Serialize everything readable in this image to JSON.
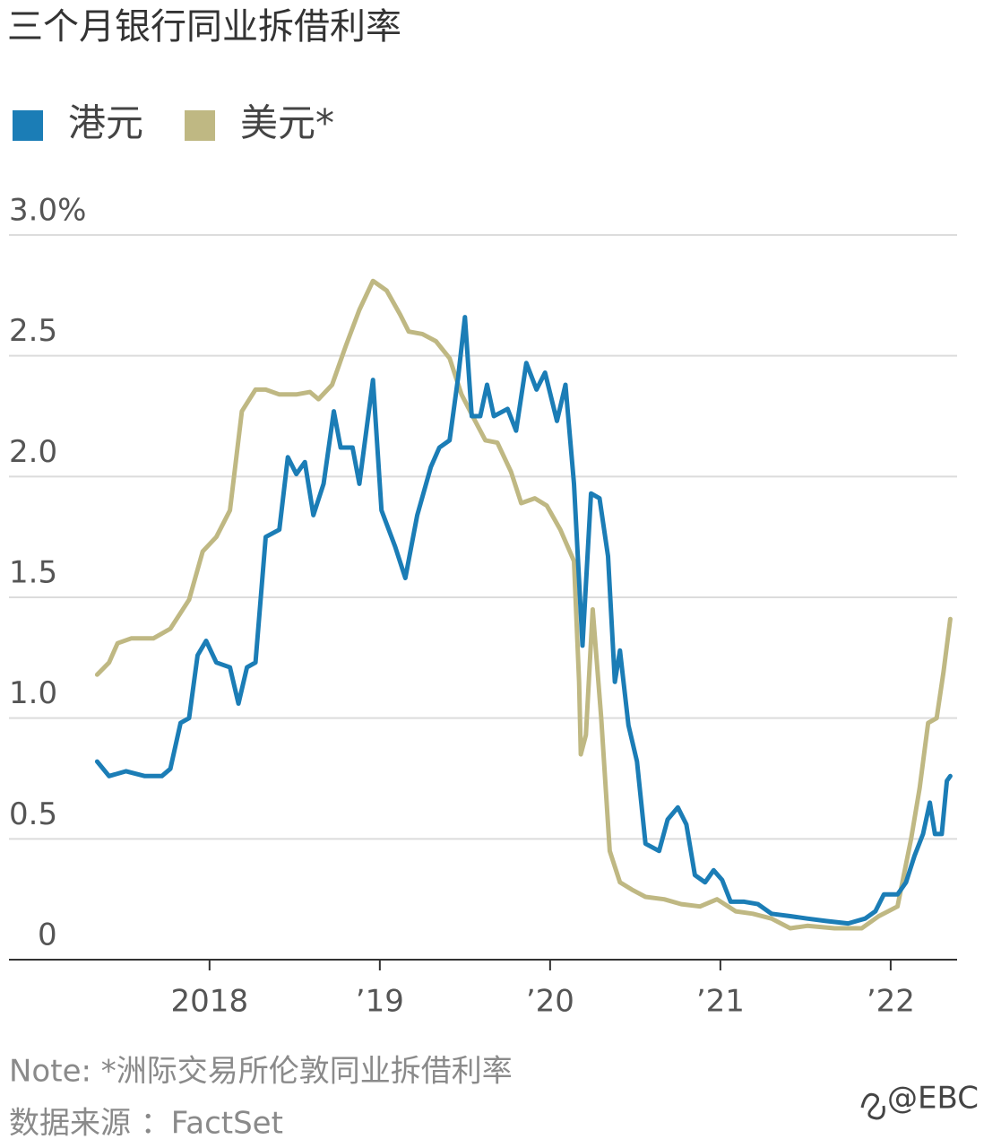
{
  "chart_data": {
    "type": "line",
    "title": "三个月银行同业拆借利率",
    "note": "Note: *洲际交易所伦敦同业拆借利率",
    "source": "数据来源 ：FactSet",
    "watermark": "@EBC",
    "xlim": [
      2016.98,
      2022.39
    ],
    "xticks": [
      2018,
      {
        "value": 2019,
        "label": "’19"
      },
      {
        "value": 2020,
        "label": "’20"
      },
      {
        "value": 2021,
        "label": "’21"
      },
      {
        "value": 2022,
        "label": "’22"
      }
    ],
    "ylim": [
      0,
      3
    ],
    "yticks": [
      0,
      0.5,
      {
        "value": 1,
        "label": "1.0"
      },
      1.5,
      {
        "value": 2,
        "label": "2.0"
      },
      2.5,
      {
        "value": 3,
        "label": "3.0%"
      }
    ],
    "grid": true,
    "series": [
      {
        "name": "港元",
        "color": "#1b7db6",
        "x": [
          2017.34,
          2017.41,
          2017.51,
          2017.62,
          2017.72,
          2017.77,
          2017.83,
          2017.88,
          2017.93,
          2017.98,
          2018.04,
          2018.12,
          2018.17,
          2018.22,
          2018.27,
          2018.33,
          2018.41,
          2018.46,
          2018.51,
          2018.56,
          2018.61,
          2018.67,
          2018.73,
          2018.77,
          2018.84,
          2018.88,
          2018.96,
          2019.01,
          2019.09,
          2019.15,
          2019.22,
          2019.3,
          2019.35,
          2019.41,
          2019.46,
          2019.5,
          2019.54,
          2019.59,
          2019.63,
          2019.67,
          2019.75,
          2019.8,
          2019.86,
          2019.92,
          2019.97,
          2020.04,
          2020.09,
          2020.14,
          2020.19,
          2020.24,
          2020.29,
          2020.34,
          2020.38,
          2020.41,
          2020.46,
          2020.51,
          2020.56,
          2020.64,
          2020.69,
          2020.75,
          2020.8,
          2020.85,
          2020.91,
          2020.96,
          2021.01,
          2021.06,
          2021.14,
          2021.22,
          2021.3,
          2021.41,
          2021.51,
          2021.62,
          2021.75,
          2021.85,
          2021.91,
          2021.96,
          2022.04,
          2022.09,
          2022.14,
          2022.19,
          2022.23,
          2022.26,
          2022.3,
          2022.33,
          2022.35
        ],
        "values": [
          0.82,
          0.76,
          0.78,
          0.76,
          0.76,
          0.79,
          0.98,
          1.0,
          1.26,
          1.32,
          1.23,
          1.21,
          1.06,
          1.21,
          1.23,
          1.75,
          1.78,
          2.08,
          2.01,
          2.06,
          1.84,
          1.97,
          2.27,
          2.12,
          2.12,
          1.97,
          2.4,
          1.86,
          1.71,
          1.58,
          1.84,
          2.04,
          2.12,
          2.15,
          2.41,
          2.66,
          2.25,
          2.25,
          2.38,
          2.25,
          2.28,
          2.19,
          2.47,
          2.36,
          2.43,
          2.23,
          2.38,
          1.97,
          1.3,
          1.93,
          1.91,
          1.67,
          1.15,
          1.28,
          0.97,
          0.82,
          0.48,
          0.45,
          0.58,
          0.63,
          0.56,
          0.35,
          0.32,
          0.37,
          0.33,
          0.24,
          0.24,
          0.23,
          0.19,
          0.18,
          0.17,
          0.16,
          0.15,
          0.17,
          0.2,
          0.27,
          0.27,
          0.32,
          0.43,
          0.52,
          0.65,
          0.52,
          0.52,
          0.74,
          0.76
        ]
      },
      {
        "name": "美元*",
        "color": "#bfb883",
        "x": [
          2017.34,
          2017.41,
          2017.46,
          2017.54,
          2017.67,
          2017.77,
          2017.88,
          2017.96,
          2018.04,
          2018.12,
          2018.19,
          2018.27,
          2018.33,
          2018.41,
          2018.51,
          2018.59,
          2018.64,
          2018.72,
          2018.8,
          2018.88,
          2018.96,
          2019.04,
          2019.12,
          2019.17,
          2019.25,
          2019.33,
          2019.41,
          2019.48,
          2019.56,
          2019.62,
          2019.69,
          2019.77,
          2019.83,
          2019.91,
          2019.98,
          2020.06,
          2020.14,
          2020.17,
          2020.18,
          2020.21,
          2020.25,
          2020.3,
          2020.35,
          2020.41,
          2020.48,
          2020.56,
          2020.67,
          2020.77,
          2020.88,
          2020.98,
          2021.09,
          2021.19,
          2021.3,
          2021.41,
          2021.51,
          2021.67,
          2021.83,
          2021.93,
          2022.04,
          2022.12,
          2022.17,
          2022.22,
          2022.27,
          2022.31,
          2022.35
        ],
        "values": [
          1.18,
          1.23,
          1.31,
          1.33,
          1.33,
          1.37,
          1.49,
          1.69,
          1.75,
          1.86,
          2.27,
          2.36,
          2.36,
          2.34,
          2.34,
          2.35,
          2.32,
          2.38,
          2.54,
          2.69,
          2.81,
          2.77,
          2.67,
          2.6,
          2.59,
          2.56,
          2.49,
          2.34,
          2.23,
          2.15,
          2.14,
          2.02,
          1.89,
          1.91,
          1.88,
          1.78,
          1.65,
          1.15,
          0.85,
          0.93,
          1.45,
          1.0,
          0.45,
          0.32,
          0.29,
          0.26,
          0.25,
          0.23,
          0.22,
          0.25,
          0.2,
          0.19,
          0.17,
          0.13,
          0.14,
          0.13,
          0.13,
          0.18,
          0.22,
          0.5,
          0.71,
          0.98,
          1.0,
          1.19,
          1.41
        ]
      }
    ]
  }
}
